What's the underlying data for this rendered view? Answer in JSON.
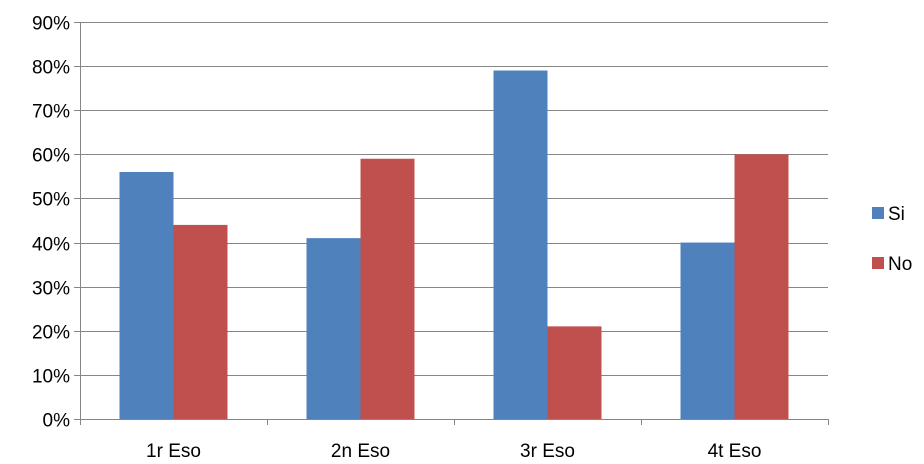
{
  "chart_data": {
    "type": "bar",
    "categories": [
      "1r Eso",
      "2n Eso",
      "3r Eso",
      "4t Eso"
    ],
    "series": [
      {
        "name": "Si",
        "values": [
          0.56,
          0.41,
          0.79,
          0.4
        ],
        "color": "#4F81BD"
      },
      {
        "name": "No",
        "values": [
          0.44,
          0.59,
          0.21,
          0.6
        ],
        "color": "#C0504D"
      }
    ],
    "ylim": [
      0,
      0.9
    ],
    "yticks": [
      0,
      0.1,
      0.2,
      0.3,
      0.4,
      0.5,
      0.6,
      0.7,
      0.8,
      0.9
    ],
    "ytick_labels": [
      "0%",
      "10%",
      "20%",
      "30%",
      "40%",
      "50%",
      "60%",
      "70%",
      "80%",
      "90%"
    ],
    "grid": true,
    "legend_position": "right",
    "title": "",
    "xlabel": "",
    "ylabel": ""
  }
}
